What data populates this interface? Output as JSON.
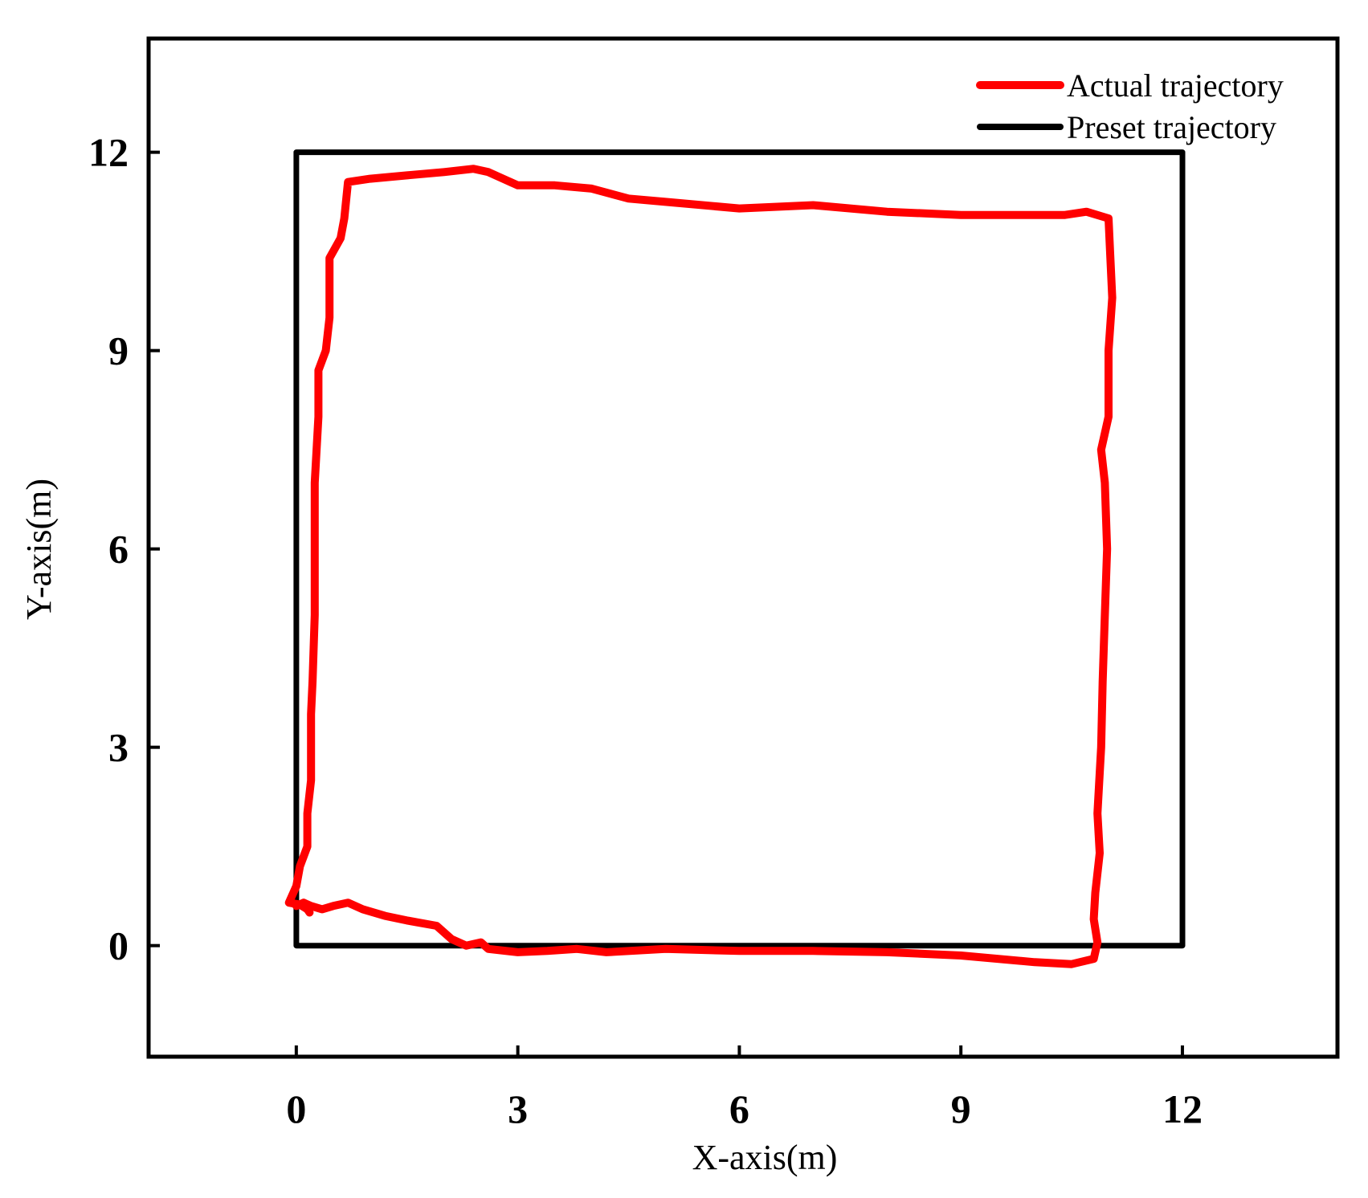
{
  "chart_data": {
    "type": "line",
    "title": "",
    "xlabel": "X-axis(m)",
    "ylabel": "Y-axis(m)",
    "xlim": [
      -2.0,
      14.1
    ],
    "ylim": [
      -1.68,
      13.72
    ],
    "xticks": [
      0,
      3,
      6,
      9,
      12
    ],
    "yticks": [
      0,
      3,
      6,
      9,
      12
    ],
    "xtick_labels": [
      "0",
      "3",
      "6",
      "9",
      "12"
    ],
    "ytick_labels": [
      "0",
      "3",
      "6",
      "9",
      "12"
    ],
    "grid": false,
    "legend_position": "top-right",
    "series": [
      {
        "name": "Actual trajectory",
        "color": "#ff0000",
        "points": [
          [
            0.0,
            0.6
          ],
          [
            0.1,
            0.65
          ],
          [
            0.2,
            0.6
          ],
          [
            0.35,
            0.55
          ],
          [
            0.5,
            0.6
          ],
          [
            0.7,
            0.65
          ],
          [
            0.9,
            0.55
          ],
          [
            1.2,
            0.45
          ],
          [
            1.5,
            0.38
          ],
          [
            1.9,
            0.3
          ],
          [
            2.1,
            0.1
          ],
          [
            2.3,
            0.0
          ],
          [
            2.5,
            0.05
          ],
          [
            2.6,
            -0.05
          ],
          [
            3.0,
            -0.1
          ],
          [
            3.4,
            -0.08
          ],
          [
            3.8,
            -0.05
          ],
          [
            4.2,
            -0.1
          ],
          [
            5.0,
            -0.05
          ],
          [
            6.0,
            -0.08
          ],
          [
            7.0,
            -0.08
          ],
          [
            8.0,
            -0.1
          ],
          [
            9.0,
            -0.15
          ],
          [
            10.0,
            -0.25
          ],
          [
            10.5,
            -0.28
          ],
          [
            10.8,
            -0.2
          ],
          [
            10.85,
            0.05
          ],
          [
            10.8,
            0.4
          ],
          [
            10.82,
            0.8
          ],
          [
            10.88,
            1.4
          ],
          [
            10.85,
            2.0
          ],
          [
            10.9,
            3.0
          ],
          [
            10.92,
            4.0
          ],
          [
            10.95,
            5.0
          ],
          [
            10.98,
            6.0
          ],
          [
            10.95,
            7.0
          ],
          [
            10.9,
            7.5
          ],
          [
            11.0,
            8.0
          ],
          [
            11.0,
            9.0
          ],
          [
            11.05,
            9.8
          ],
          [
            11.02,
            10.5
          ],
          [
            11.0,
            11.0
          ],
          [
            10.7,
            11.1
          ],
          [
            10.4,
            11.05
          ],
          [
            10.0,
            11.05
          ],
          [
            9.0,
            11.05
          ],
          [
            8.0,
            11.1
          ],
          [
            7.0,
            11.2
          ],
          [
            6.0,
            11.15
          ],
          [
            5.0,
            11.25
          ],
          [
            4.5,
            11.3
          ],
          [
            4.0,
            11.45
          ],
          [
            3.5,
            11.5
          ],
          [
            3.0,
            11.5
          ],
          [
            2.8,
            11.6
          ],
          [
            2.6,
            11.7
          ],
          [
            2.4,
            11.75
          ],
          [
            2.0,
            11.7
          ],
          [
            1.5,
            11.65
          ],
          [
            1.0,
            11.6
          ],
          [
            0.7,
            11.55
          ],
          [
            0.65,
            11.0
          ],
          [
            0.6,
            10.7
          ],
          [
            0.45,
            10.4
          ],
          [
            0.45,
            9.5
          ],
          [
            0.4,
            9.0
          ],
          [
            0.3,
            8.7
          ],
          [
            0.3,
            8.0
          ],
          [
            0.25,
            7.0
          ],
          [
            0.25,
            6.0
          ],
          [
            0.25,
            5.0
          ],
          [
            0.22,
            4.0
          ],
          [
            0.2,
            3.5
          ],
          [
            0.2,
            3.0
          ],
          [
            0.2,
            2.5
          ],
          [
            0.15,
            2.0
          ],
          [
            0.15,
            1.5
          ],
          [
            0.05,
            1.2
          ],
          [
            0.0,
            0.9
          ],
          [
            -0.1,
            0.65
          ],
          [
            0.05,
            0.62
          ],
          [
            0.15,
            0.55
          ],
          [
            0.18,
            0.5
          ]
        ]
      },
      {
        "name": "Preset trajectory",
        "color": "#000000",
        "points": [
          [
            0,
            0
          ],
          [
            12,
            0
          ],
          [
            12,
            12
          ],
          [
            0,
            12
          ],
          [
            0,
            0
          ]
        ]
      }
    ]
  }
}
